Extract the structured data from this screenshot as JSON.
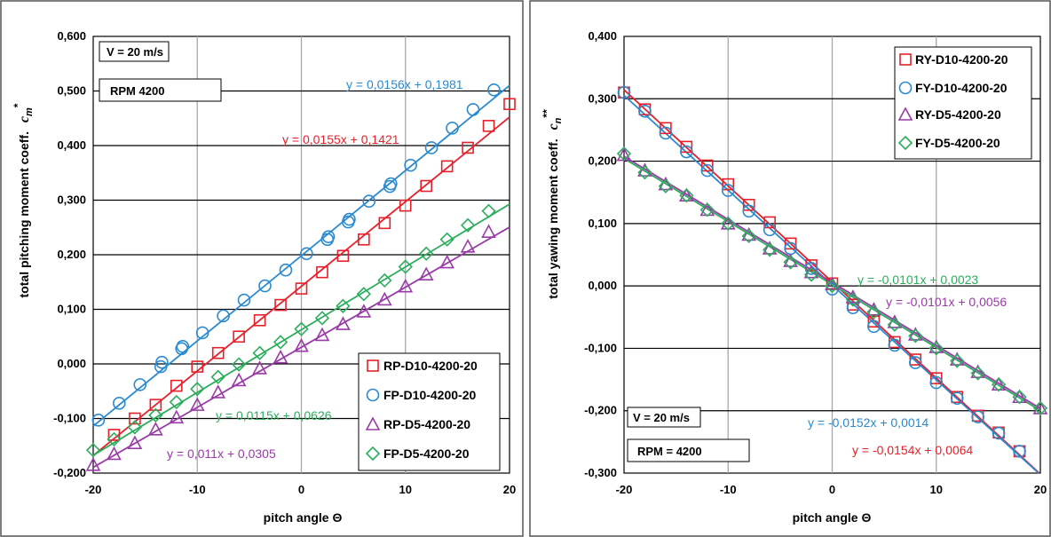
{
  "chart_data": [
    {
      "type": "scatter",
      "xlabel": "pitch angle Θ",
      "ylabel": "total pitching moment coeff.",
      "ylabel_symbol": "c",
      "ylabel_sub": "m",
      "ylabel_sup": "*",
      "xlim": [
        -20,
        20
      ],
      "ylim": [
        -0.2,
        0.6
      ],
      "xticks": [
        -20,
        -10,
        0,
        10,
        20
      ],
      "yticks": [
        -0.2,
        -0.1,
        0.0,
        0.1,
        0.2,
        0.3,
        0.4,
        0.5,
        0.6
      ],
      "ytick_labels": [
        "-0,200",
        "-0,100",
        "0,000",
        "0,100",
        "0,200",
        "0,300",
        "0,400",
        "0,500",
        "0,600"
      ],
      "xtick_labels": [
        "-20",
        "-10",
        "0",
        "10",
        "20"
      ],
      "grid": "on",
      "legend_position": "bottom-right",
      "annotations": [
        {
          "id": "v",
          "text": "V = 20 m/s"
        },
        {
          "id": "rpm",
          "text": "RPM 4200"
        }
      ],
      "series": [
        {
          "name": "RP-D10-4200-20",
          "marker": "square",
          "color": "#e8202a",
          "equation": "y = 0,0155x + 0,1421",
          "slope": 0.0155,
          "intercept": 0.1421,
          "x": [
            -18,
            -16,
            -14,
            -12,
            -10,
            -8,
            -6,
            -4,
            -2,
            0,
            2,
            4,
            6,
            8,
            10,
            12,
            14,
            16,
            18,
            20
          ],
          "y": [
            -0.13,
            -0.1,
            -0.075,
            -0.04,
            -0.005,
            0.02,
            0.05,
            0.08,
            0.108,
            0.138,
            0.168,
            0.198,
            0.228,
            0.258,
            0.29,
            0.326,
            0.362,
            0.396,
            0.436,
            0.476
          ]
        },
        {
          "name": "FP-D10-4200-20",
          "marker": "circle",
          "color": "#2a8ad0",
          "equation": "y = 0,0156x + 0,1981",
          "slope": 0.0156,
          "intercept": 0.1981,
          "x": [
            -19.5,
            -17.5,
            -15.5,
            -13.5,
            -13.4,
            -11.5,
            -11.4,
            -9.5,
            -7.5,
            -5.5,
            -3.5,
            -1.5,
            0.5,
            2.5,
            2.6,
            4.5,
            4.6,
            6.5,
            8.5,
            8.6,
            10.5,
            12.5,
            14.5,
            16.5,
            18.5
          ],
          "y": [
            -0.103,
            -0.072,
            -0.038,
            -0.005,
            0.003,
            0.028,
            0.032,
            0.057,
            0.088,
            0.117,
            0.143,
            0.172,
            0.202,
            0.228,
            0.233,
            0.26,
            0.265,
            0.298,
            0.325,
            0.33,
            0.364,
            0.396,
            0.432,
            0.466,
            0.502
          ]
        },
        {
          "name": "RP-D5-4200-20",
          "marker": "triangle",
          "color": "#9a3aa8",
          "equation": "y = 0,011x + 0,0305",
          "slope": 0.011,
          "intercept": 0.0305,
          "x": [
            -20,
            -18,
            -16,
            -14,
            -12,
            -10,
            -8,
            -6,
            -4,
            -2,
            0,
            2,
            4,
            6,
            8,
            10,
            12,
            14,
            16,
            18
          ],
          "y": [
            -0.185,
            -0.165,
            -0.145,
            -0.12,
            -0.098,
            -0.075,
            -0.052,
            -0.03,
            -0.008,
            0.012,
            0.033,
            0.053,
            0.073,
            0.096,
            0.118,
            0.142,
            0.164,
            0.186,
            0.215,
            0.242
          ]
        },
        {
          "name": "FP-D5-4200-20",
          "marker": "diamond",
          "color": "#2bae5c",
          "equation": "y = 0,0115x + 0,0626",
          "slope": 0.0115,
          "intercept": 0.0626,
          "x": [
            -20,
            -18,
            -16,
            -14,
            -12,
            -10,
            -8,
            -6,
            -4,
            -2,
            0,
            2,
            4,
            6,
            8,
            10,
            12,
            14,
            16,
            18
          ],
          "y": [
            -0.158,
            -0.138,
            -0.116,
            -0.094,
            -0.07,
            -0.046,
            -0.024,
            -0.001,
            0.02,
            0.04,
            0.064,
            0.084,
            0.106,
            0.128,
            0.153,
            0.178,
            0.202,
            0.228,
            0.254,
            0.28
          ]
        }
      ]
    },
    {
      "type": "scatter",
      "xlabel": "pitch angle Θ",
      "ylabel": "total yawing moment coeff.",
      "ylabel_symbol": "c",
      "ylabel_sub": "n",
      "ylabel_sup": "**",
      "xlim": [
        -20,
        20
      ],
      "ylim": [
        -0.3,
        0.4
      ],
      "xticks": [
        -20,
        -10,
        0,
        10,
        20
      ],
      "yticks": [
        -0.3,
        -0.2,
        -0.1,
        0.0,
        0.1,
        0.2,
        0.3,
        0.4
      ],
      "ytick_labels": [
        "-0,300",
        "-0,200",
        "-0,100",
        "0,000",
        "0,100",
        "0,200",
        "0,300",
        "0,400"
      ],
      "xtick_labels": [
        "-20",
        "-10",
        "0",
        "10",
        "20"
      ],
      "grid": "on",
      "legend_position": "top-right",
      "annotations": [
        {
          "id": "v",
          "text": "V = 20 m/s"
        },
        {
          "id": "rpm",
          "text": "RPM = 4200"
        }
      ],
      "series": [
        {
          "name": "RY-D10-4200-20",
          "marker": "square",
          "color": "#e8202a",
          "equation": "y = -0,0154x + 0,0064",
          "slope": -0.0154,
          "intercept": 0.0064,
          "x": [
            -20,
            -18,
            -16,
            -14,
            -12,
            -10,
            -8,
            -6,
            -4,
            -2,
            0,
            2,
            4,
            6,
            8,
            10,
            12,
            14,
            16,
            18
          ],
          "y": [
            0.31,
            0.283,
            0.253,
            0.223,
            0.193,
            0.163,
            0.13,
            0.102,
            0.068,
            0.033,
            0.004,
            -0.03,
            -0.057,
            -0.09,
            -0.118,
            -0.148,
            -0.178,
            -0.208,
            -0.235,
            -0.265
          ]
        },
        {
          "name": "FY-D10-4200-20",
          "marker": "circle",
          "color": "#2a8ad0",
          "equation": "y = -0,0152x + 0,0014",
          "slope": -0.0152,
          "intercept": 0.0014,
          "x": [
            -20,
            -18,
            -16,
            -14,
            -12,
            -10,
            -8,
            -6,
            -4,
            -2,
            0,
            2,
            4,
            6,
            8,
            10,
            12,
            14,
            16,
            18
          ],
          "y": [
            0.31,
            0.28,
            0.245,
            0.215,
            0.185,
            0.153,
            0.12,
            0.09,
            0.06,
            0.028,
            -0.005,
            -0.035,
            -0.065,
            -0.095,
            -0.123,
            -0.155,
            -0.18,
            -0.21,
            -0.236,
            -0.265
          ]
        },
        {
          "name": "RY-D5-4200-20",
          "marker": "triangle",
          "color": "#9a3aa8",
          "equation": "y = -0,0101x + 0,0056",
          "slope": -0.0101,
          "intercept": 0.0056,
          "x": [
            -20,
            -18,
            -16,
            -14,
            -12,
            -10,
            -8,
            -6,
            -4,
            -2,
            0,
            2,
            4,
            6,
            8,
            10,
            12,
            14,
            16,
            18,
            20
          ],
          "y": [
            0.21,
            0.185,
            0.163,
            0.145,
            0.122,
            0.1,
            0.082,
            0.06,
            0.04,
            0.022,
            0.003,
            -0.018,
            -0.038,
            -0.058,
            -0.078,
            -0.098,
            -0.118,
            -0.138,
            -0.158,
            -0.178,
            -0.196
          ]
        },
        {
          "name": "FY-D5-4200-20",
          "marker": "diamond",
          "color": "#2bae5c",
          "equation": "y = -0,0101x + 0,0023",
          "slope": -0.0101,
          "intercept": 0.0023,
          "x": [
            -20,
            -18,
            -16,
            -14,
            -12,
            -10,
            -8,
            -6,
            -4,
            -2,
            0,
            2,
            4,
            6,
            8,
            10,
            12,
            14,
            16,
            18,
            20
          ],
          "y": [
            0.212,
            0.182,
            0.16,
            0.145,
            0.122,
            0.1,
            0.08,
            0.058,
            0.038,
            0.018,
            0.0,
            -0.022,
            -0.042,
            -0.062,
            -0.08,
            -0.1,
            -0.12,
            -0.14,
            -0.158,
            -0.178,
            -0.196
          ]
        }
      ]
    }
  ]
}
